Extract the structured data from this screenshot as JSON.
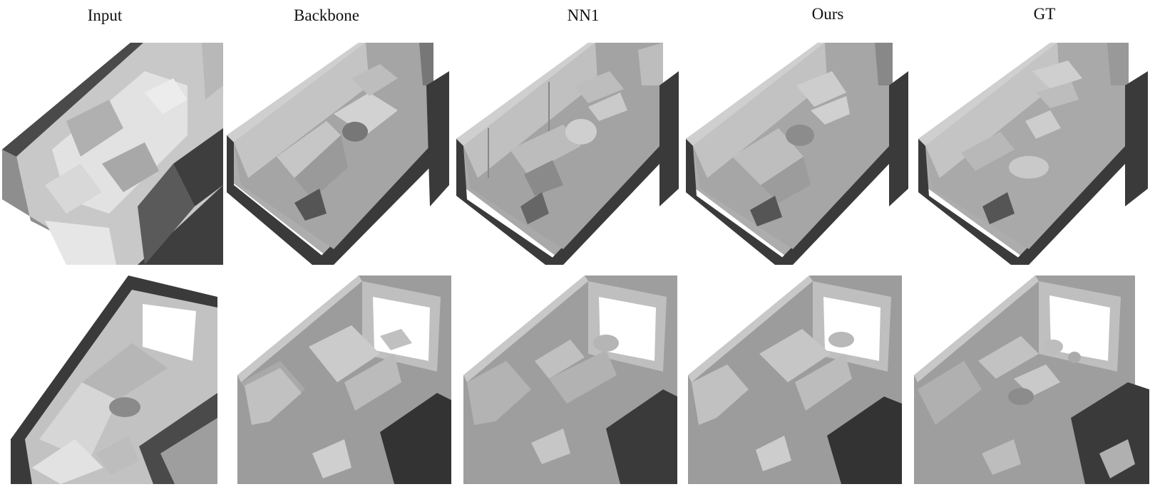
{
  "headers": {
    "input": "Input",
    "backbone": "Backbone",
    "nn1": "NN1",
    "ours": "Ours",
    "gt": "GT"
  },
  "colors": {
    "floor": "#9c9c9c",
    "wall_top": "#cfcfcf",
    "wall_inner": "#bdbdbd",
    "wall_outer_dark": "#3a3a3a",
    "furniture_light": "#d0d0d0",
    "furniture_mid": "#a8a8a8",
    "furniture_dark": "#6e6e6e",
    "window": "#ffffff"
  },
  "panels": {
    "row1": [
      "input-coarse-mesh",
      "backbone-reconstruction",
      "nn1-reconstruction",
      "ours-reconstruction",
      "gt-mesh"
    ],
    "row2": [
      "input-coarse-mesh",
      "backbone-reconstruction",
      "nn1-reconstruction",
      "ours-reconstruction",
      "gt-mesh"
    ]
  }
}
